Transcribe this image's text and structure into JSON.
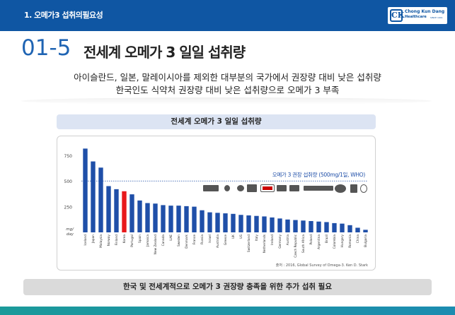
{
  "header": {
    "title": "1. 오메가3 섭취의필요성",
    "logo_name": "Chong Kun Dang",
    "logo_sub": "Healthcare",
    "logo_tag": "SINCE 1941",
    "logo_mark": "CK"
  },
  "section": {
    "number": "01-5",
    "title": "전세계 오메가 3 일일 섭취량"
  },
  "subtitle": {
    "line1": "아이슬란드, 일본, 말레이시아를 제외한 대부분의 국가에서 권장량 대비 낮은 섭취량",
    "line2": "한국인도 식약처 권장량 대비 낮은 섭취량으로 오메가 3 부족"
  },
  "chart_header": "전세계 오메가 3 일일 섭취량",
  "chart_data": {
    "type": "bar",
    "ylabel": "mg/ day",
    "ylim": [
      0,
      900
    ],
    "yticks": [
      250,
      500,
      750
    ],
    "categories": [
      "Iceland",
      "Japan",
      "Malaysia",
      "Norway",
      "Finland",
      "Korea",
      "Portugal",
      "Spain",
      "Jamaica",
      "New Zealand",
      "Canada",
      "UAE",
      "Sweden",
      "Denmark",
      "France",
      "Russia",
      "Israel",
      "Australia",
      "Greece",
      "UK",
      "US",
      "Switzerland",
      "Italy",
      "Netherlands",
      "Ireland",
      "Germany",
      "Austria",
      "Czech Republic",
      "South Africa",
      "Poland",
      "Argentina",
      "Brazil",
      "Colombia",
      "Hungary",
      "Romania",
      "China",
      "Bulgaria"
    ],
    "values": [
      815,
      690,
      630,
      450,
      420,
      400,
      370,
      310,
      285,
      280,
      265,
      260,
      260,
      255,
      250,
      215,
      195,
      190,
      185,
      180,
      170,
      165,
      160,
      155,
      145,
      135,
      125,
      120,
      115,
      110,
      105,
      100,
      90,
      85,
      70,
      45,
      25
    ],
    "highlight": "Korea",
    "bar_color": "#1f4fa8",
    "highlight_color": "#e8191b",
    "reference_line": {
      "value": 500,
      "label": "오메가 3 권장 섭취량 (500mg/1일, WHO)",
      "color": "#1f4fa8"
    },
    "source": "출처 : 2016, Global Survey of Omega-3. Ken D. Stark"
  },
  "footer_text": "한국 및 전세계적으로 오메가 3 권장량 충족을 위한 추가 섭취 필요"
}
